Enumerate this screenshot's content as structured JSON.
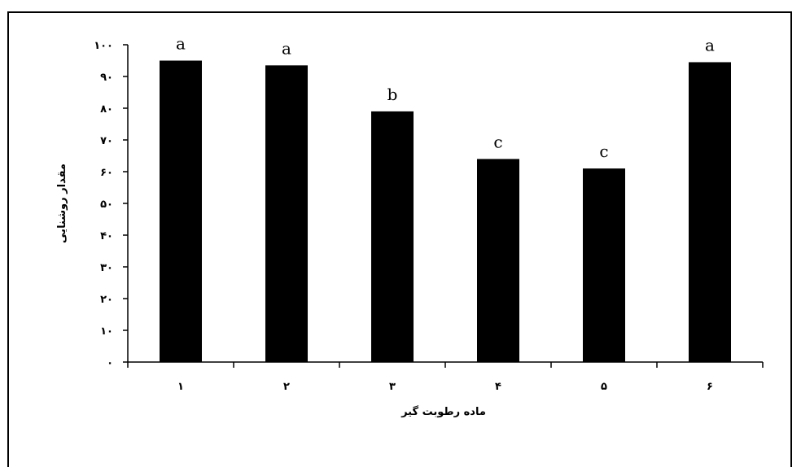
{
  "chart_data": {
    "type": "bar",
    "categories": [
      "۱",
      "۲",
      "۳",
      "۴",
      "۵",
      "۶"
    ],
    "values": [
      95,
      93.5,
      79,
      64,
      61,
      94.5
    ],
    "bar_labels": [
      "a",
      "a",
      "b",
      "c",
      "c",
      "a"
    ],
    "title": "",
    "xlabel": "ماده رطوبت گیر",
    "ylabel": "مقدار روشنایی",
    "ylim": [
      0,
      100
    ],
    "yticks": [
      0,
      10,
      20,
      30,
      40,
      50,
      60,
      70,
      80,
      90,
      100
    ],
    "ytick_labels": [
      "۰",
      "۱۰",
      "۲۰",
      "۳۰",
      "۴۰",
      "۵۰",
      "۶۰",
      "۷۰",
      "۸۰",
      "۹۰",
      "۱۰۰"
    ],
    "bar_color": "#000000",
    "grid": false,
    "legend": false
  }
}
